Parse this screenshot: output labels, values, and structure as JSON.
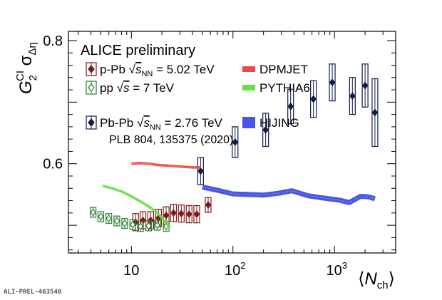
{
  "chart_data": {
    "type": "scatter",
    "title": "ALICE preliminary",
    "xlabel": "⟨N_ch⟩",
    "ylabel": "G_2^CI σ_Δη",
    "x_scale": "log",
    "xlim": [
      2.4,
      4000
    ],
    "ylim": [
      0.455,
      0.815
    ],
    "x_tick_labels": [
      "10",
      "10^2",
      "10^3"
    ],
    "y_ticks": [
      0.6,
      0.8
    ],
    "y_tick_labels": [
      "0.6",
      "0.8"
    ],
    "grid": false,
    "reference": "PLB 804, 135375 (2020)",
    "series": [
      {
        "name": "p-Pb √s_NN = 5.02 TeV",
        "color": "#7b1a1a",
        "style": "points-with-boxes",
        "points": [
          {
            "x": 11.0,
            "y": 0.505,
            "unc": 0.014
          },
          {
            "x": 13.0,
            "y": 0.508,
            "unc": 0.014
          },
          {
            "x": 15.5,
            "y": 0.508,
            "unc": 0.014
          },
          {
            "x": 18.5,
            "y": 0.512,
            "unc": 0.014
          },
          {
            "x": 22.0,
            "y": 0.516,
            "unc": 0.014
          },
          {
            "x": 26.0,
            "y": 0.52,
            "unc": 0.014
          },
          {
            "x": 31.0,
            "y": 0.519,
            "unc": 0.014
          },
          {
            "x": 37.0,
            "y": 0.518,
            "unc": 0.014
          },
          {
            "x": 44.0,
            "y": 0.518,
            "unc": 0.014
          },
          {
            "x": 57.0,
            "y": 0.533,
            "unc": 0.012
          }
        ]
      },
      {
        "name": "pp √s = 7 TeV",
        "color": "#2e7d32",
        "style": "points-with-boxes",
        "points": [
          {
            "x": 4.2,
            "y": 0.521,
            "unc": 0.008
          },
          {
            "x": 5.0,
            "y": 0.514,
            "unc": 0.008
          },
          {
            "x": 6.0,
            "y": 0.511,
            "unc": 0.008
          },
          {
            "x": 7.2,
            "y": 0.507,
            "unc": 0.008
          },
          {
            "x": 8.6,
            "y": 0.503,
            "unc": 0.008
          },
          {
            "x": 10.3,
            "y": 0.501,
            "unc": 0.008
          },
          {
            "x": 12.3,
            "y": 0.498,
            "unc": 0.008
          },
          {
            "x": 14.8,
            "y": 0.499,
            "unc": 0.008
          },
          {
            "x": 18.0,
            "y": 0.5,
            "unc": 0.008
          },
          {
            "x": 22.0,
            "y": 0.498,
            "unc": 0.008
          }
        ]
      },
      {
        "name": "Pb-Pb √s_NN = 2.76 TeV",
        "color": "#0d1a4a",
        "style": "points-with-boxes",
        "points": [
          {
            "x": 48,
            "y": 0.588,
            "unc": 0.022
          },
          {
            "x": 105,
            "y": 0.635,
            "unc": 0.025
          },
          {
            "x": 210,
            "y": 0.655,
            "unc": 0.027
          },
          {
            "x": 370,
            "y": 0.693,
            "unc": 0.028
          },
          {
            "x": 620,
            "y": 0.705,
            "unc": 0.03
          },
          {
            "x": 950,
            "y": 0.732,
            "unc": 0.03
          },
          {
            "x": 1500,
            "y": 0.71,
            "unc": 0.03
          },
          {
            "x": 2000,
            "y": 0.727,
            "unc": 0.035
          },
          {
            "x": 2500,
            "y": 0.683,
            "unc": 0.055
          }
        ]
      },
      {
        "name": "DPMJET",
        "color": "#e53935",
        "style": "band",
        "points": [
          {
            "x": 10,
            "y": 0.6
          },
          {
            "x": 12,
            "y": 0.601
          },
          {
            "x": 15,
            "y": 0.6
          },
          {
            "x": 18,
            "y": 0.598
          },
          {
            "x": 22,
            "y": 0.597
          },
          {
            "x": 27,
            "y": 0.596
          },
          {
            "x": 33,
            "y": 0.595
          },
          {
            "x": 40,
            "y": 0.594
          },
          {
            "x": 48,
            "y": 0.594
          }
        ]
      },
      {
        "name": "PYTHIA6",
        "color": "#55dd33",
        "style": "band",
        "points": [
          {
            "x": 5.2,
            "y": 0.564
          },
          {
            "x": 6.5,
            "y": 0.56
          },
          {
            "x": 8,
            "y": 0.555
          },
          {
            "x": 10,
            "y": 0.547
          },
          {
            "x": 12.5,
            "y": 0.538
          },
          {
            "x": 15,
            "y": 0.53
          },
          {
            "x": 18,
            "y": 0.52
          },
          {
            "x": 21,
            "y": 0.508
          },
          {
            "x": 24,
            "y": 0.496
          }
        ]
      },
      {
        "name": "HIJING",
        "color": "#3344dd",
        "style": "band",
        "points": [
          {
            "x": 50,
            "y": 0.562
          },
          {
            "x": 70,
            "y": 0.557
          },
          {
            "x": 100,
            "y": 0.551
          },
          {
            "x": 140,
            "y": 0.55
          },
          {
            "x": 200,
            "y": 0.549
          },
          {
            "x": 280,
            "y": 0.552
          },
          {
            "x": 380,
            "y": 0.556
          },
          {
            "x": 550,
            "y": 0.548
          },
          {
            "x": 800,
            "y": 0.544
          },
          {
            "x": 1100,
            "y": 0.541
          },
          {
            "x": 1400,
            "y": 0.537
          },
          {
            "x": 1800,
            "y": 0.547
          },
          {
            "x": 2200,
            "y": 0.546
          },
          {
            "x": 2500,
            "y": 0.543
          }
        ]
      }
    ],
    "legend": {
      "title": "ALICE preliminary",
      "entries": [
        {
          "text": "p-Pb √s_NN = 5.02 TeV",
          "series": 0
        },
        {
          "text": "pp √s = 7 TeV",
          "series": 1
        },
        {
          "text": "Pb-Pb √s_NN = 2.76 TeV",
          "series": 2
        },
        {
          "text": "DPMJET",
          "series": 3
        },
        {
          "text": "PYTHIA6",
          "series": 4
        },
        {
          "text": "HIJING",
          "series": 5
        }
      ]
    }
  },
  "figure_id": "ALI-PREL-463540"
}
